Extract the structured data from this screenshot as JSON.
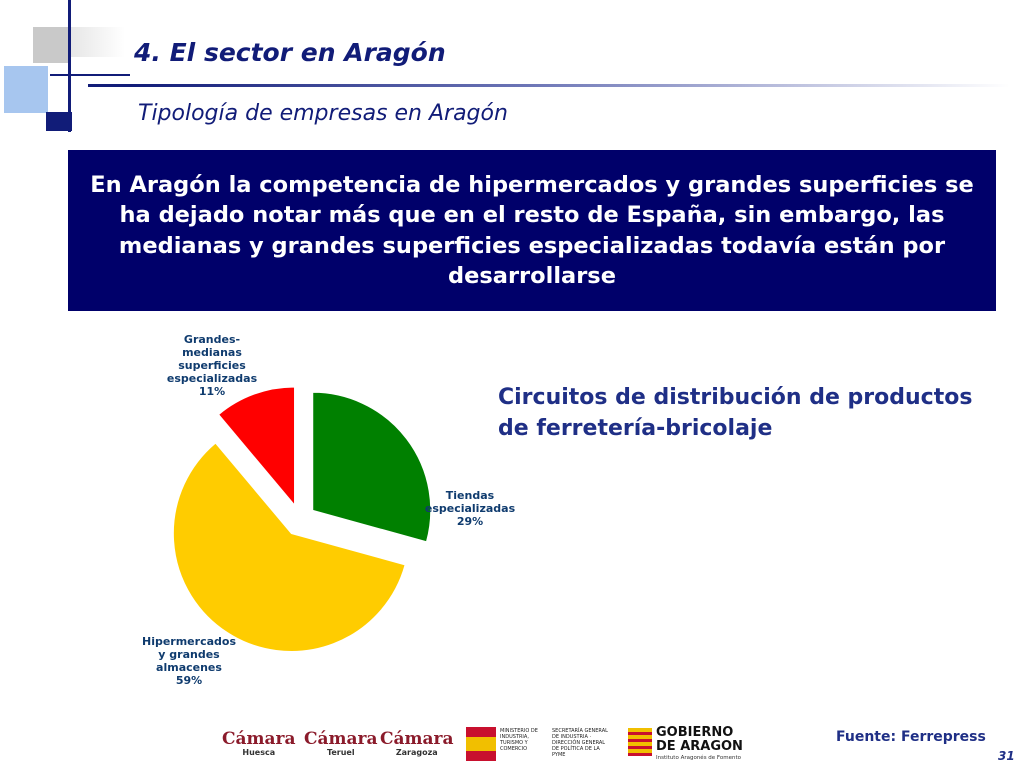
{
  "header": {
    "title": "4. El sector en Aragón",
    "subtitle": "Tipología de empresas en Aragón"
  },
  "banner": {
    "text": "En Aragón la competencia de hipermercados y grandes superficies se ha dejado notar más que en el resto de España, sin embargo, las medianas y grandes superficies especializadas todavía están por desarrollarse"
  },
  "chart_heading": "Circuitos de distribución de productos de ferretería-bricolaje",
  "chart_data": {
    "type": "pie",
    "title": "",
    "slices": [
      {
        "label": "Tiendas especializadas",
        "lines": [
          "Tiendas",
          "especializadas",
          "29%"
        ],
        "value": 29,
        "color": "#008000"
      },
      {
        "label": "Hipermercados y grandes almacenes",
        "lines": [
          "Hipermercados",
          "y grandes",
          "almacenes",
          "59%"
        ],
        "value": 59,
        "color": "#ffcc00"
      },
      {
        "label": "Grandes-medianas superficies especializadas",
        "lines": [
          "Grandes-",
          "medianas",
          "superficies",
          "especializadas",
          "11%"
        ],
        "value": 11,
        "color": "#ff0000"
      }
    ]
  },
  "footer": {
    "logos": [
      {
        "name": "Cámara",
        "sub": "Huesca"
      },
      {
        "name": "Cámara",
        "sub": "Teruel"
      },
      {
        "name": "Cámara",
        "sub": "Zaragoza"
      },
      {
        "name": "MINISTERIO DE INDUSTRIA, TURISMO Y COMERCIO",
        "sub": "SECRETARÍA GENERAL DE INDUSTRIA · DIRECCIÓN GENERAL DE POLÍTICA DE LA PYME"
      },
      {
        "name": "GOBIERNO DE ARAGON",
        "sub": "Instituto Aragonés de Fomento"
      }
    ],
    "source": "Fuente: Ferrepress",
    "page_number": "31"
  },
  "colors": {
    "primary": "#111c78",
    "banner_bg": "#00006a"
  }
}
